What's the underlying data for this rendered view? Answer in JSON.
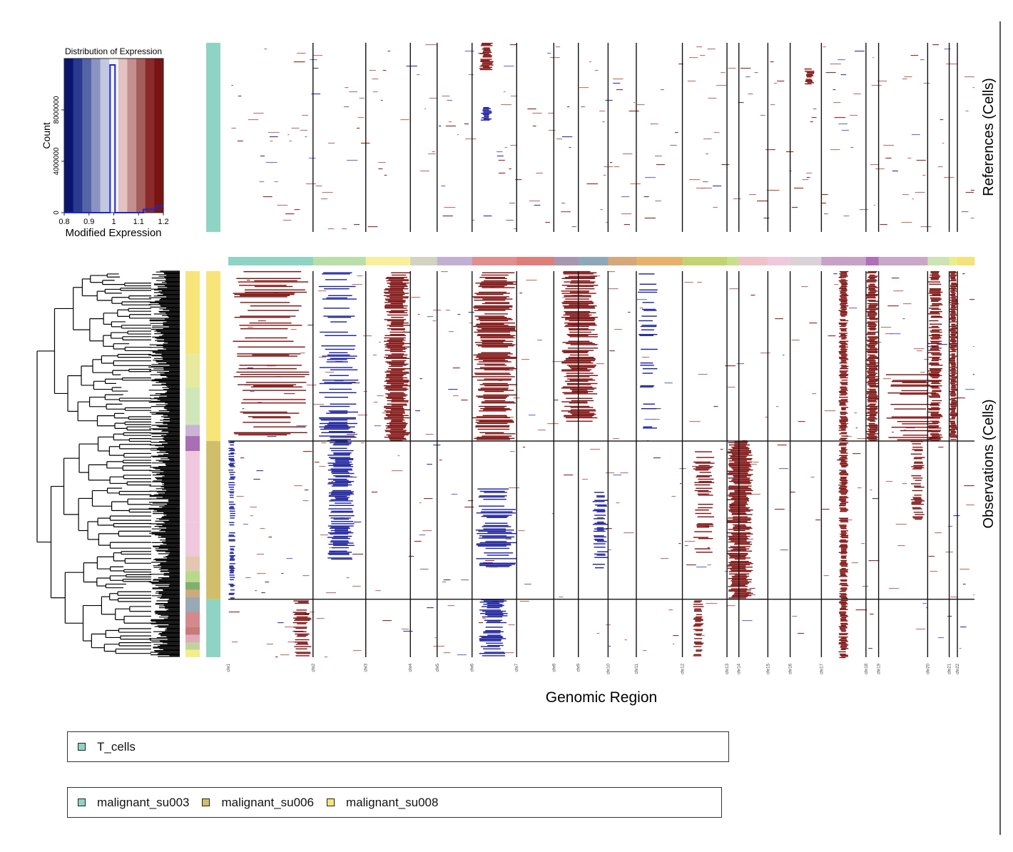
{
  "chart_data": {
    "type": "heatmap",
    "histogram": {
      "title": "Distribution of Expression",
      "xlabel": "Modified Expression",
      "ylabel": "Count",
      "x_ticks": [
        "0.8",
        "0.9",
        "1",
        "1.1",
        "1.2"
      ],
      "y_ticks": [
        "0",
        "4000000",
        "8000000"
      ],
      "xlim": [
        0.8,
        1.2
      ],
      "ylim": [
        0,
        12000000
      ],
      "bins": [
        {
          "x": 0.85,
          "count": 0
        },
        {
          "x": 0.99,
          "count": 11500000
        },
        {
          "x": 1.15,
          "count": 250000
        },
        {
          "x": 1.19,
          "count": 500000
        }
      ],
      "colorscale": [
        "#0a1570",
        "#2b3a8f",
        "#5563a8",
        "#8a93c2",
        "#c3c7df",
        "#f4f4f7",
        "#e2c2c2",
        "#c48f8f",
        "#a45c5c",
        "#8a2a2a",
        "#7a1414"
      ]
    },
    "xlabel": "Genomic Region",
    "ylabel_references": "References (Cells)",
    "ylabel_observations": "Observations (Cells)",
    "chromosomes": [
      {
        "name": "chr1",
        "width": 11.4,
        "color": "#8fd3c4"
      },
      {
        "name": "chr2",
        "width": 7.1,
        "color": "#b9dfa9"
      },
      {
        "name": "chr3",
        "width": 6.0,
        "color": "#f7ef9c"
      },
      {
        "name": "chr4",
        "width": 3.6,
        "color": "#d3d3c4"
      },
      {
        "name": "chr5",
        "width": 4.7,
        "color": "#c2b0d4"
      },
      {
        "name": "chr6",
        "width": 6.0,
        "color": "#e08e8e"
      },
      {
        "name": "chr7",
        "width": 5.0,
        "color": "#de7e78"
      },
      {
        "name": "chr8",
        "width": 3.3,
        "color": "#a895b0"
      },
      {
        "name": "chr9",
        "width": 4.0,
        "color": "#8fa8b8"
      },
      {
        "name": "chr10",
        "width": 3.8,
        "color": "#d5a77a"
      },
      {
        "name": "chr11",
        "width": 6.2,
        "color": "#e6b26a"
      },
      {
        "name": "chr12",
        "width": 6.0,
        "color": "#c2d370"
      },
      {
        "name": "chr13",
        "width": 1.6,
        "color": "#c9e08a"
      },
      {
        "name": "chr14",
        "width": 3.9,
        "color": "#efc2c9"
      },
      {
        "name": "chr15",
        "width": 3.0,
        "color": "#f0c8dd"
      },
      {
        "name": "chr16",
        "width": 4.2,
        "color": "#d9d2d6"
      },
      {
        "name": "chr17",
        "width": 6.0,
        "color": "#c7a2c5"
      },
      {
        "name": "chr18",
        "width": 1.7,
        "color": "#b06fb8"
      },
      {
        "name": "chr19",
        "width": 6.6,
        "color": "#c8a8c6"
      },
      {
        "name": "chr20",
        "width": 2.9,
        "color": "#cde3b4"
      },
      {
        "name": "chr21",
        "width": 1.1,
        "color": "#e9ee8a"
      },
      {
        "name": "chr22",
        "width": 2.3,
        "color": "#f6e27a"
      }
    ],
    "observation_groups": [
      {
        "name": "malignant_su008",
        "color": "#f7e57a",
        "share": 0.44
      },
      {
        "name": "malignant_su006",
        "color": "#cfbf6a",
        "share": 0.41
      },
      {
        "name": "malignant_su003",
        "color": "#8fd3c4",
        "share": 0.15
      }
    ],
    "reference_groups": [
      {
        "name": "T_cells",
        "color": "#8fd3c4"
      }
    ]
  },
  "legend_references": [
    {
      "label": "T_cells",
      "color": "#8fd3c4"
    }
  ],
  "legend_observations": [
    {
      "label": "malignant_su003",
      "color": "#8fd3c4"
    },
    {
      "label": "malignant_su006",
      "color": "#cfbf6a"
    },
    {
      "label": "malignant_su008",
      "color": "#f7e57a"
    }
  ]
}
